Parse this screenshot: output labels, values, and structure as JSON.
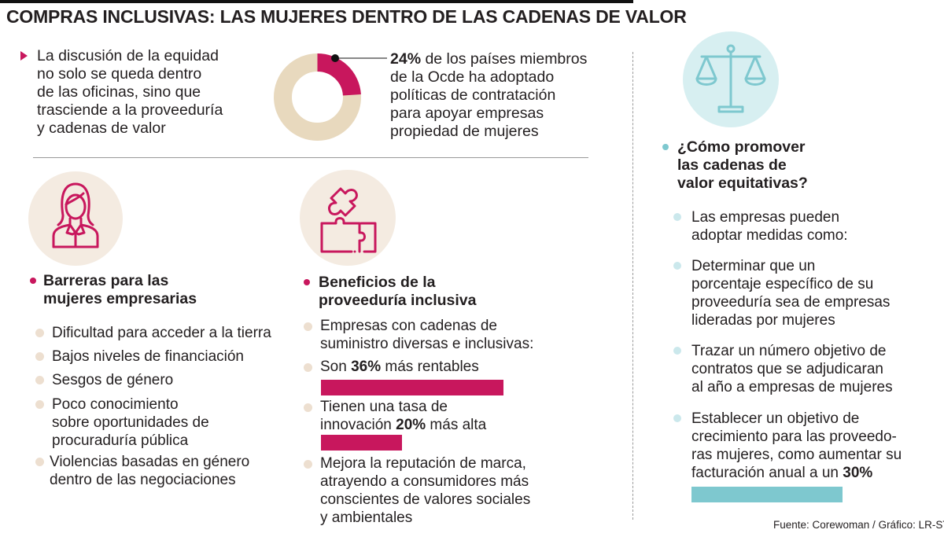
{
  "title": "COMPRAS INCLUSIVAS: LAS MUJERES DENTRO DE LAS CADENAS DE VALOR",
  "intro": {
    "lines": [
      "La discusión de la equidad",
      "no solo se queda dentro",
      "de las oficinas, sino que",
      "trasciende a la proveeduría",
      "y cadenas de valor"
    ]
  },
  "stat": {
    "percent_label": "24%",
    "share": 0.24,
    "line1_rest": " de los países miembros",
    "lines": [
      "de la Ocde ha adoptado",
      "políticas de contratación",
      "para apoyar empresas",
      "propiedad de mujeres"
    ]
  },
  "barriers": {
    "heading": [
      "Barreras para las",
      "mujeres empresarias"
    ],
    "items": [
      [
        "Dificultad para acceder a la tierra"
      ],
      [
        "Bajos niveles de financiación"
      ],
      [
        "Sesgos de género"
      ],
      [
        "Poco conocimiento",
        "sobre oportunidades de",
        "procuraduría pública"
      ],
      [
        "Violencias basadas en género",
        "dentro de las negociaciones"
      ]
    ]
  },
  "benefits": {
    "heading": [
      "Beneficios de la",
      "proveeduría inclusiva"
    ],
    "item1": [
      "Empresas con cadenas de",
      "suministro diversas e inclusivas:"
    ],
    "item2": {
      "pre": "Son ",
      "value_label": "36%",
      "post": " más rentables",
      "value": 36
    },
    "item3": {
      "line1": "Tienen una tasa de",
      "pre": "innovación ",
      "value_label": "20%",
      "post": " más alta",
      "value": 20
    },
    "item4": [
      "Mejora la reputación de marca,",
      "atrayendo a consumidores más",
      "conscientes de valores sociales",
      "y ambientales"
    ]
  },
  "promote": {
    "heading": [
      "¿Cómo promover",
      "las cadenas de",
      "valor equitativas?"
    ],
    "items": [
      [
        "Las empresas pueden",
        "adoptar medidas como:"
      ],
      [
        "Determinar que un",
        "porcentaje específico de su",
        "proveeduría sea de empresas",
        "lideradas por mujeres"
      ],
      [
        "Trazar un número objetivo de",
        "contratos que se adjudicaran",
        "al año a empresas de mujeres"
      ]
    ],
    "last": {
      "lines": [
        "Establecer un objetivo de",
        "crecimiento para las proveedo-",
        "ras mujeres, como aumentar su"
      ],
      "pre": "facturación anual a un ",
      "value_label": "30%",
      "value": 30
    }
  },
  "source": "Fuente: Corewoman / Gráfico: LR-ST",
  "colors": {
    "accent": "#c8175d",
    "teal": "#7ec8cf",
    "beige": "#e8d9be",
    "beige_bg": "#f4ebe1",
    "teal_bg": "#d7eff1"
  },
  "icons": [
    "businesswoman-icon",
    "puzzle-icon",
    "scale-icon"
  ]
}
